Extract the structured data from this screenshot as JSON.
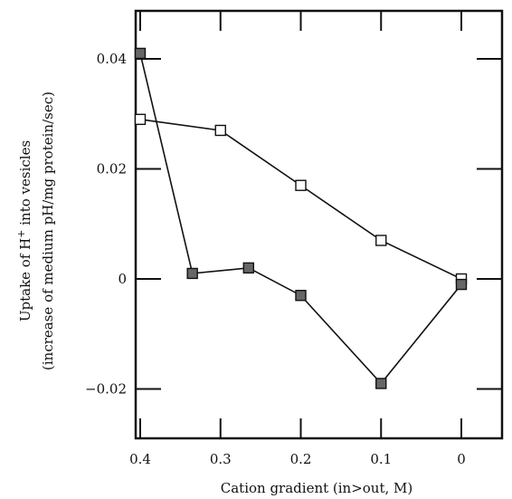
{
  "chart_data": {
    "type": "line",
    "title": "",
    "xlabel": "Cation gradient (in>out, M)",
    "ylabel_line1": "Uptake of H",
    "ylabel_sup": "+",
    "ylabel_line1_tail": " into vesicles",
    "ylabel_line2": "(increase of medium pH/mg protein/sec)",
    "x_reversed": true,
    "xlim": [
      0.4,
      -0.06
    ],
    "ylim": [
      -0.03,
      0.05
    ],
    "x_ticks": [
      0.4,
      0.3,
      0.2,
      0.1,
      0
    ],
    "x_tick_labels": [
      "0.4",
      "0.3",
      "0.2",
      "0.1",
      "0"
    ],
    "y_ticks": [
      0.04,
      0.02,
      0,
      -0.02
    ],
    "y_tick_labels": [
      "0.04",
      "0.02",
      "0",
      "−0.02"
    ],
    "grid": false,
    "legend": "none",
    "series": [
      {
        "marker": "open-square",
        "color": "#111111",
        "x": [
          0.4,
          0.3,
          0.2,
          0.1,
          0
        ],
        "y": [
          0.029,
          0.027,
          0.017,
          0.007,
          0.0
        ]
      },
      {
        "marker": "filled-square",
        "color": "#666666",
        "x": [
          0.4,
          0.335,
          0.265,
          0.2,
          0.1,
          0
        ],
        "y": [
          0.041,
          0.001,
          0.002,
          -0.003,
          -0.019,
          -0.001
        ]
      }
    ]
  }
}
